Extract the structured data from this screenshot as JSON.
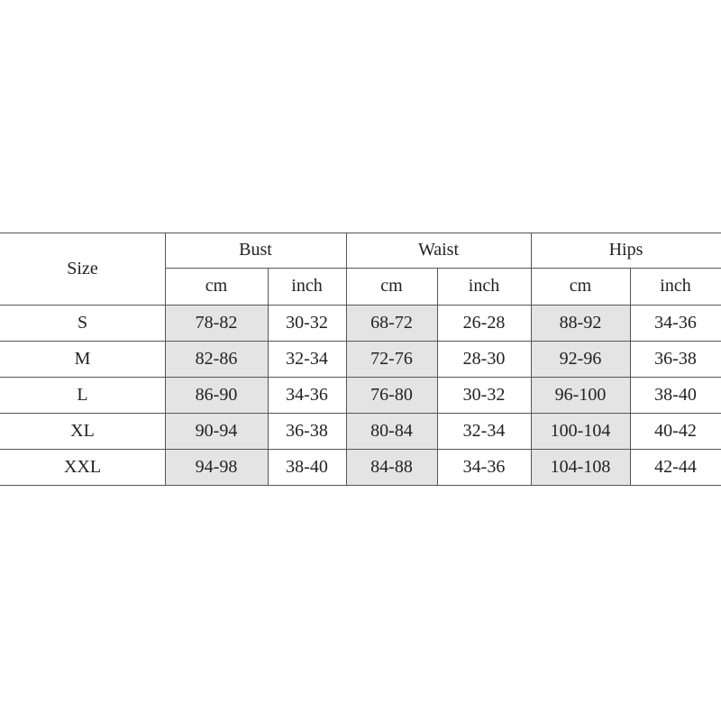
{
  "table": {
    "corner": "Size",
    "groups": [
      "Bust",
      "Waist",
      "Hips"
    ],
    "units": [
      "cm",
      "inch",
      "cm",
      "inch",
      "cm",
      "inch"
    ],
    "rows": [
      [
        "S",
        "78-82",
        "30-32",
        "68-72",
        "26-28",
        "88-92",
        "34-36"
      ],
      [
        "M",
        "82-86",
        "32-34",
        "72-76",
        "28-30",
        "92-96",
        "36-38"
      ],
      [
        "L",
        "86-90",
        "34-36",
        "76-80",
        "30-32",
        "96-100",
        "38-40"
      ],
      [
        "XL",
        "90-94",
        "36-38",
        "80-84",
        "32-34",
        "100-104",
        "40-42"
      ],
      [
        "XXL",
        "94-98",
        "38-40",
        "84-88",
        "34-36",
        "104-108",
        "42-44"
      ]
    ]
  }
}
